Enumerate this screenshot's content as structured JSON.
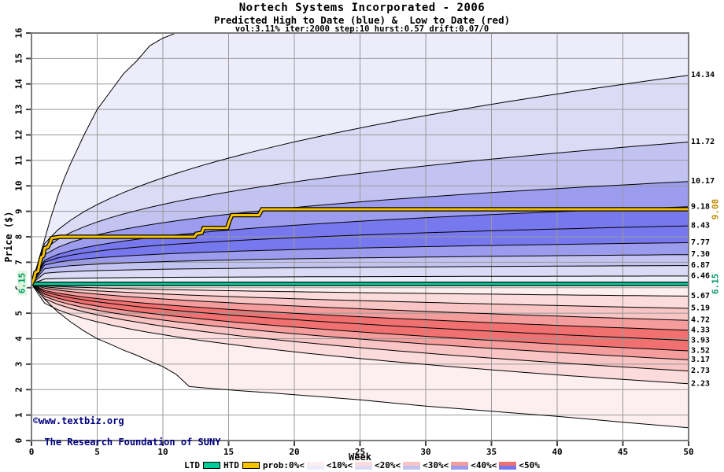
{
  "header": {
    "title": "Nortech Systems Incorporated - 2006",
    "subtitle": "Predicted High to Date (blue) &  Low to Date (red)",
    "params": "vol:3.11% iter:2000 step:10 hurst:0.57 drift:0.07/0"
  },
  "copyright": {
    "line1": "©www.textbiz.org",
    "line2": "The Research Foundation of SUNY",
    "color": "#000080"
  },
  "legend": {
    "ltd_label": "LTD",
    "htd_label": "HTD",
    "prob_items": [
      {
        "label": "prob:0%<",
        "top": "#FDEFEF",
        "bottom": "#ECECFA"
      },
      {
        "label": "<10%<",
        "top": "#FBDBDB",
        "bottom": "#DBDBF6"
      },
      {
        "label": "<20%<",
        "top": "#F8C4C4",
        "bottom": "#C3C3F1"
      },
      {
        "label": "<30%<",
        "top": "#F59C9C",
        "bottom": "#9C9CEF"
      },
      {
        "label": "<40%<",
        "top": "#F17070",
        "bottom": "#7878EE"
      },
      {
        "label": "<50%",
        "top": null,
        "bottom": null
      }
    ]
  },
  "colors": {
    "grid": "#999999",
    "frame": "#7d7d7d",
    "boundary": "#000000",
    "htd_gold": "#F5C300",
    "ltd_teal": "#00CC99",
    "navy": "#000080"
  },
  "chart_data": {
    "type": "area",
    "title": "Nortech Systems Incorporated - 2006",
    "start_price": 6.15,
    "x": {
      "label": "Week",
      "min": 0,
      "max": 50,
      "ticks": [
        0,
        5,
        10,
        15,
        20,
        25,
        30,
        35,
        40,
        45,
        50
      ]
    },
    "y": {
      "label": "Price ($)",
      "min": 0,
      "max": 16,
      "ticks": [
        0,
        1,
        2,
        3,
        4,
        5,
        6,
        7,
        8,
        9,
        10,
        11,
        12,
        13,
        14,
        15,
        16
      ]
    },
    "start_label": {
      "text": "6.15",
      "color": "#009966",
      "bg": "#DFF5DF"
    },
    "high_to_date": {
      "note": "blue probability bands of predicted high-to-date, quantile boundary values at week 50",
      "band_colors": [
        "#ECECFA",
        "#DBDBF6",
        "#C3C3F1",
        "#9C9CEF",
        "#7878EE",
        "#7878EE",
        "#9C9CEF",
        "#C3C3F1",
        "#DBDBF6",
        "#ECECFA"
      ],
      "boundaries": [
        {
          "name": "prob-0-upper",
          "points": [
            [
              0,
              6.15
            ],
            [
              0.5,
              7.0
            ],
            [
              1,
              7.9
            ],
            [
              1.5,
              8.8
            ],
            [
              2,
              9.6
            ],
            [
              2.5,
              10.3
            ],
            [
              3,
              10.9
            ],
            [
              4,
              12.0
            ],
            [
              5,
              13.0
            ],
            [
              6,
              13.7
            ],
            [
              7,
              14.4
            ],
            [
              8,
              14.9
            ],
            [
              9,
              15.5
            ],
            [
              10,
              15.8
            ],
            [
              11,
              16.0
            ],
            [
              12,
              16.5
            ],
            [
              14,
              17.2
            ],
            [
              50,
              18.5
            ]
          ]
        },
        {
          "end": 14.34,
          "alpha": 0.42
        },
        {
          "end": 11.72,
          "alpha": 0.36
        },
        {
          "end": 10.17,
          "alpha": 0.32
        },
        {
          "end": 9.18,
          "alpha": 0.3
        },
        {
          "end": 8.43,
          "alpha": 0.25
        },
        {
          "end": 7.77,
          "alpha": 0.2
        },
        {
          "end": 7.3,
          "alpha": 0.17
        },
        {
          "end": 6.87,
          "alpha": 0.14
        },
        {
          "end": 6.46,
          "alpha": 0.12
        },
        {
          "name": "center",
          "points": [
            [
              0,
              6.15
            ],
            [
              50,
              6.15
            ]
          ]
        }
      ]
    },
    "low_to_date": {
      "note": "red probability bands of predicted low-to-date, quantile boundary values at week 50",
      "band_colors": [
        "#FDEFEF",
        "#FBDBDB",
        "#F8C4C4",
        "#F59C9C",
        "#F17070",
        "#F17070",
        "#F59C9C",
        "#F8C4C4",
        "#FBDBDB",
        "#FDEFEF"
      ],
      "boundaries": [
        {
          "name": "center",
          "points": [
            [
              0,
              6.15
            ],
            [
              50,
              6.15
            ]
          ]
        },
        {
          "end": 5.67,
          "alpha": 0.49
        },
        {
          "end": 5.19,
          "alpha": 0.55
        },
        {
          "end": 4.72,
          "alpha": 0.55
        },
        {
          "end": 4.33,
          "alpha": 0.5
        },
        {
          "end": 3.93,
          "alpha": 0.5
        },
        {
          "end": 3.52,
          "alpha": 0.48
        },
        {
          "end": 3.17,
          "alpha": 0.46
        },
        {
          "end": 2.73,
          "alpha": 0.45
        },
        {
          "end": 2.23,
          "alpha": 0.42
        },
        {
          "name": "prob-0-lower",
          "points": [
            [
              0,
              6.15
            ],
            [
              0.5,
              5.85
            ],
            [
              1,
              5.55
            ],
            [
              1.5,
              5.3
            ],
            [
              2,
              5.05
            ],
            [
              2.5,
              4.85
            ],
            [
              3,
              4.65
            ],
            [
              4,
              4.3
            ],
            [
              5,
              4.0
            ],
            [
              6,
              3.78
            ],
            [
              7,
              3.55
            ],
            [
              8,
              3.35
            ],
            [
              9,
              3.12
            ],
            [
              10,
              2.9
            ],
            [
              11,
              2.6
            ],
            [
              12,
              2.12
            ],
            [
              14,
              2.03
            ],
            [
              16,
              1.95
            ],
            [
              18,
              1.88
            ],
            [
              20,
              1.8
            ],
            [
              25,
              1.6
            ],
            [
              30,
              1.35
            ],
            [
              35,
              1.15
            ],
            [
              40,
              0.95
            ],
            [
              45,
              0.72
            ],
            [
              50,
              0.5
            ]
          ]
        }
      ]
    },
    "htd_line": {
      "label": "HTD",
      "color": "#F5C300",
      "final_value": 9.08,
      "points": [
        [
          0,
          6.15
        ],
        [
          0.2,
          6.35
        ],
        [
          0.3,
          6.6
        ],
        [
          0.5,
          6.65
        ],
        [
          0.6,
          6.9
        ],
        [
          0.75,
          7.2
        ],
        [
          0.9,
          7.25
        ],
        [
          1.0,
          7.55
        ],
        [
          1.25,
          7.6
        ],
        [
          1.4,
          7.75
        ],
        [
          1.55,
          7.95
        ],
        [
          2.2,
          8.0
        ],
        [
          12.4,
          8.0
        ],
        [
          12.55,
          8.12
        ],
        [
          12.95,
          8.15
        ],
        [
          13.1,
          8.35
        ],
        [
          14.9,
          8.35
        ],
        [
          15.05,
          8.6
        ],
        [
          15.25,
          8.85
        ],
        [
          17.3,
          8.85
        ],
        [
          17.55,
          9.08
        ],
        [
          50,
          9.08
        ]
      ]
    },
    "ltd_line": {
      "label": "LTD",
      "color": "#00CC99",
      "final_value": 6.15,
      "points": [
        [
          0,
          6.15
        ],
        [
          50,
          6.15
        ]
      ]
    },
    "right_labels": [
      {
        "text": "14.34",
        "value": 14.34,
        "color": "#000000",
        "rotated": false
      },
      {
        "text": "11.72",
        "value": 11.72,
        "color": "#000000",
        "rotated": false
      },
      {
        "text": "10.17",
        "value": 10.17,
        "color": "#000000",
        "rotated": false
      },
      {
        "text": "9.18",
        "value": 9.18,
        "color": "#000000",
        "rotated": false
      },
      {
        "text": "9.08",
        "value": 9.08,
        "color": "#C08A00",
        "rotated": true
      },
      {
        "text": "8.43",
        "value": 8.43,
        "color": "#000000",
        "rotated": false
      },
      {
        "text": "7.77",
        "value": 7.77,
        "color": "#000000",
        "rotated": false
      },
      {
        "text": "7.30",
        "value": 7.3,
        "color": "#000000",
        "rotated": false
      },
      {
        "text": "6.87",
        "value": 6.87,
        "color": "#000000",
        "rotated": false
      },
      {
        "text": "6.46",
        "value": 6.46,
        "color": "#000000",
        "rotated": false
      },
      {
        "text": "6.15",
        "value": 6.15,
        "color": "#009966",
        "rotated": true
      },
      {
        "text": "5.67",
        "value": 5.67,
        "color": "#000000",
        "rotated": false
      },
      {
        "text": "5.19",
        "value": 5.19,
        "color": "#000000",
        "rotated": false
      },
      {
        "text": "4.72",
        "value": 4.72,
        "color": "#000000",
        "rotated": false
      },
      {
        "text": "4.33",
        "value": 4.33,
        "color": "#000000",
        "rotated": false
      },
      {
        "text": "3.93",
        "value": 3.93,
        "color": "#000000",
        "rotated": false
      },
      {
        "text": "3.52",
        "value": 3.52,
        "color": "#000000",
        "rotated": false
      },
      {
        "text": "3.17",
        "value": 3.17,
        "color": "#000000",
        "rotated": false
      },
      {
        "text": "2.73",
        "value": 2.73,
        "color": "#000000",
        "rotated": false
      },
      {
        "text": "2.23",
        "value": 2.23,
        "color": "#000000",
        "rotated": false
      }
    ]
  }
}
